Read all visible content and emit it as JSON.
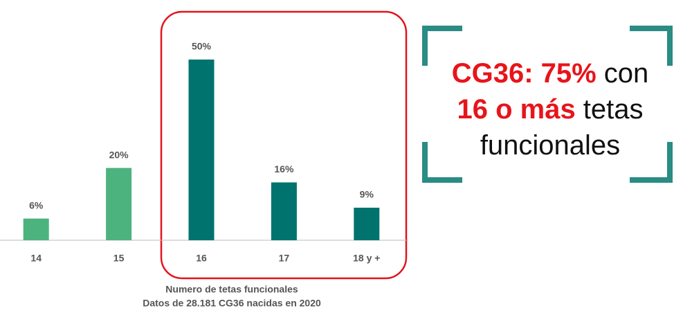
{
  "chart_data": {
    "type": "bar",
    "categories": [
      "14",
      "15",
      "16",
      "17",
      "18 y +"
    ],
    "values": [
      6,
      20,
      50,
      16,
      9
    ],
    "value_labels": [
      "6%",
      "20%",
      "50%",
      "16%",
      "9%"
    ],
    "colors": [
      "#4db37e",
      "#4db37e",
      "#00736e",
      "#00736e",
      "#00736e"
    ],
    "ylim": [
      0,
      50
    ],
    "x_label": [
      "Numero de tetas funcionales",
      "Datos de 28.181 CG36  nacidas en 2020"
    ],
    "callout": [
      [
        {
          "text": "CG36: 75%",
          "emphasis": true
        },
        {
          "text": "con",
          "emphasis": false
        }
      ],
      [
        {
          "text": "16 o más",
          "emphasis": true
        },
        {
          "text": "tetas",
          "emphasis": false
        }
      ],
      [
        {
          "text": "funcionales",
          "emphasis": false
        }
      ]
    ],
    "callout_emphasis_color": "#e8141b"
  }
}
